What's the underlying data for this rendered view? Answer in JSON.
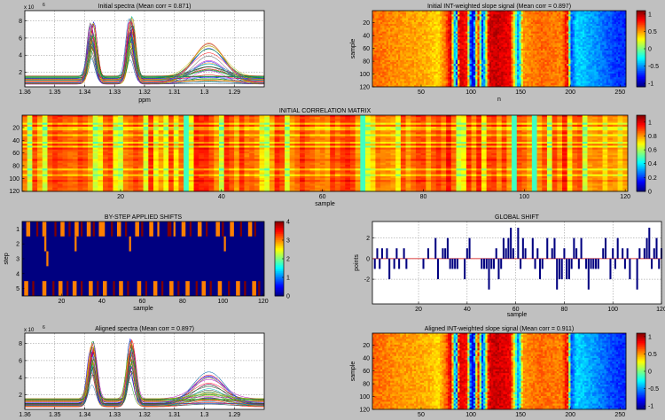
{
  "chart_data": [
    {
      "id": "initial-spectra",
      "type": "line",
      "title": "Initial spectra (Mean corr = 0.871)",
      "xlabel": "ppm",
      "ylabel": "",
      "exponent_label": "x 10",
      "exponent_power": "6",
      "xlim": [
        1.36,
        1.28
      ],
      "ylim": [
        0.3,
        9.2
      ],
      "xticks": [
        "1.36",
        "1.35",
        "1.34",
        "1.33",
        "1.32",
        "1.31",
        "1.3",
        "1.29"
      ],
      "xtick_values": [
        1.36,
        1.35,
        1.34,
        1.33,
        1.32,
        1.31,
        1.3,
        1.29
      ],
      "yticks": [
        "2",
        "4",
        "6",
        "8"
      ],
      "ytick_values": [
        2,
        4,
        6,
        8
      ],
      "peaks": [
        {
          "ppm": 1.3375,
          "max": 8.2
        },
        {
          "ppm": 1.3245,
          "max": 8.6
        },
        {
          "ppm": 1.2985,
          "max": 5.5
        }
      ],
      "baseline_range": [
        0.6,
        1.6
      ],
      "grid": true
    },
    {
      "id": "initial-slope",
      "type": "heatmap",
      "title": "Initial INT-weighted slope signal (Mean corr = 0.897)",
      "xlabel": "n",
      "ylabel": "sample",
      "xlim": [
        1,
        256
      ],
      "ylim": [
        1,
        120
      ],
      "xticks": [
        "50",
        "100",
        "150",
        "200",
        "250"
      ],
      "xtick_values": [
        50,
        100,
        150,
        200,
        250
      ],
      "yticks": [
        "20",
        "40",
        "60",
        "80",
        "100",
        "120"
      ],
      "ytick_values": [
        20,
        40,
        60,
        80,
        100,
        120
      ],
      "colorbar_ticks": [
        "1",
        "0.5",
        "0",
        "-0.5",
        "-1"
      ],
      "colorbar_values": [
        1,
        0.5,
        0,
        -0.5,
        -1
      ],
      "clim": [
        -1.1,
        1.1
      ],
      "profile": [
        {
          "n": 1,
          "v": 0.6
        },
        {
          "n": 30,
          "v": 0.5
        },
        {
          "n": 55,
          "v": 0.45
        },
        {
          "n": 68,
          "v": 0.35
        },
        {
          "n": 75,
          "v": 0.6
        },
        {
          "n": 80,
          "v": 0.95
        },
        {
          "n": 85,
          "v": -0.8
        },
        {
          "n": 88,
          "v": 0.9
        },
        {
          "n": 96,
          "v": 0.8
        },
        {
          "n": 100,
          "v": -0.8
        },
        {
          "n": 103,
          "v": -0.9
        },
        {
          "n": 107,
          "v": 0.9
        },
        {
          "n": 112,
          "v": -0.8
        },
        {
          "n": 118,
          "v": 0.9
        },
        {
          "n": 125,
          "v": 0.95
        },
        {
          "n": 140,
          "v": 0.85
        },
        {
          "n": 148,
          "v": -0.6
        },
        {
          "n": 152,
          "v": 0.5
        },
        {
          "n": 170,
          "v": 0.6
        },
        {
          "n": 192,
          "v": 0.55
        },
        {
          "n": 197,
          "v": 0.9
        },
        {
          "n": 201,
          "v": -0.7
        },
        {
          "n": 206,
          "v": -0.35
        },
        {
          "n": 225,
          "v": -0.5
        },
        {
          "n": 245,
          "v": -0.7
        },
        {
          "n": 256,
          "v": -0.75
        }
      ]
    },
    {
      "id": "initial-corr",
      "type": "heatmap",
      "title": "INITIAL CORRELATION MATRIX",
      "xlabel": "sample",
      "ylabel": "",
      "xlim": [
        1,
        120
      ],
      "ylim": [
        1,
        120
      ],
      "xticks": [
        "20",
        "40",
        "60",
        "80",
        "100",
        "120"
      ],
      "xtick_values": [
        20,
        40,
        60,
        80,
        100,
        120
      ],
      "yticks": [
        "20",
        "40",
        "60",
        "80",
        "100",
        "120"
      ],
      "ytick_values": [
        20,
        40,
        60,
        80,
        100,
        120
      ],
      "colorbar_ticks": [
        "1",
        "0.8",
        "0.6",
        "0.4",
        "0.2",
        "0"
      ],
      "colorbar_values": [
        1,
        0.8,
        0.6,
        0.4,
        0.2,
        0
      ],
      "clim": [
        0,
        1.1
      ],
      "low_corr_samples": [
        33,
        68,
        98,
        102
      ]
    },
    {
      "id": "step-shifts",
      "type": "heatmap",
      "title": "BY-STEP APPLIED SHIFTS",
      "xlabel": "sample",
      "ylabel": "step",
      "xlim": [
        1,
        120
      ],
      "ylim": [
        1,
        5
      ],
      "xticks": [
        "20",
        "40",
        "60",
        "80",
        "100",
        "120"
      ],
      "xtick_values": [
        20,
        40,
        60,
        80,
        100,
        120
      ],
      "yticks": [
        "1",
        "2",
        "3",
        "4",
        "5"
      ],
      "ytick_values": [
        1,
        2,
        3,
        4,
        5
      ],
      "colorbar_ticks": [
        "4",
        "3",
        "2",
        "1",
        "0"
      ],
      "colorbar_values": [
        4,
        3,
        2,
        1,
        0
      ],
      "clim": [
        0,
        4
      ],
      "rows": [
        {
          "step": 1,
          "cells": [
            [
              3,
              2,
              3
            ],
            [
              8,
              1,
              4
            ],
            [
              11,
              2,
              3
            ],
            [
              17,
              1,
              4
            ],
            [
              20,
              2,
              3
            ],
            [
              24,
              1,
              4
            ],
            [
              27,
              2,
              3
            ],
            [
              30,
              1,
              4
            ],
            [
              33,
              2,
              3
            ],
            [
              36,
              1,
              4
            ],
            [
              39,
              3,
              3
            ],
            [
              45,
              1,
              4
            ],
            [
              48,
              2,
              3
            ],
            [
              52,
              1,
              4
            ],
            [
              57,
              2,
              3
            ],
            [
              60,
              1,
              4
            ],
            [
              64,
              2,
              3
            ],
            [
              68,
              1,
              3
            ],
            [
              73,
              2,
              4
            ],
            [
              76,
              1,
              3
            ],
            [
              80,
              2,
              3
            ],
            [
              84,
              1,
              4
            ],
            [
              88,
              2,
              3
            ],
            [
              92,
              1,
              4
            ],
            [
              97,
              2,
              3
            ],
            [
              100,
              1,
              4
            ],
            [
              104,
              2,
              3
            ],
            [
              109,
              1,
              4
            ],
            [
              113,
              2,
              3
            ],
            [
              116,
              1,
              4
            ]
          ]
        },
        {
          "step": 2,
          "cells": [
            [
              12,
              1,
              3
            ],
            [
              27,
              1,
              3
            ],
            [
              54,
              1,
              3
            ],
            [
              101,
              1,
              3
            ]
          ]
        },
        {
          "step": 3,
          "cells": [
            [
              13,
              1,
              3
            ]
          ]
        },
        {
          "step": 4,
          "cells": []
        },
        {
          "step": 5,
          "cells": [
            [
              2,
              2,
              3
            ],
            [
              6,
              1,
              4
            ],
            [
              11,
              2,
              3
            ],
            [
              16,
              1,
              4
            ],
            [
              19,
              2,
              3
            ],
            [
              23,
              1,
              4
            ],
            [
              26,
              2,
              3
            ],
            [
              30,
              1,
              4
            ],
            [
              34,
              2,
              3
            ],
            [
              38,
              1,
              4
            ],
            [
              41,
              2,
              3
            ],
            [
              46,
              1,
              4
            ],
            [
              49,
              2,
              3
            ],
            [
              53,
              1,
              4
            ],
            [
              58,
              2,
              3
            ],
            [
              62,
              1,
              4
            ],
            [
              66,
              2,
              3
            ],
            [
              70,
              1,
              4
            ],
            [
              74,
              2,
              3
            ],
            [
              78,
              1,
              4
            ],
            [
              82,
              2,
              3
            ],
            [
              87,
              1,
              4
            ],
            [
              90,
              2,
              3
            ],
            [
              94,
              1,
              4
            ],
            [
              98,
              2,
              3
            ],
            [
              103,
              1,
              4
            ],
            [
              107,
              2,
              3
            ],
            [
              111,
              1,
              4
            ],
            [
              115,
              2,
              3
            ],
            [
              118,
              1,
              4
            ]
          ]
        }
      ]
    },
    {
      "id": "global-shift",
      "type": "bar",
      "title": "GLOBAL SHIFT",
      "xlabel": "sample",
      "ylabel": "points",
      "xlim": [
        1,
        120
      ],
      "ylim": [
        -4.4,
        3.6
      ],
      "xticks": [
        "20",
        "40",
        "60",
        "80",
        "100",
        "120"
      ],
      "xtick_values": [
        20,
        40,
        60,
        80,
        100,
        120
      ],
      "yticks": [
        "2",
        "0",
        "-2"
      ],
      "ytick_values": [
        2,
        0,
        -2
      ],
      "x": [
        1,
        2,
        3,
        4,
        5,
        6,
        7,
        8,
        9,
        10,
        11,
        12,
        13,
        14,
        15,
        16,
        17,
        18,
        19,
        20,
        21,
        22,
        23,
        24,
        25,
        26,
        27,
        28,
        29,
        30,
        31,
        32,
        33,
        34,
        35,
        36,
        37,
        38,
        39,
        40,
        41,
        42,
        43,
        44,
        45,
        46,
        47,
        48,
        49,
        50,
        51,
        52,
        53,
        54,
        55,
        56,
        57,
        58,
        59,
        60,
        61,
        62,
        63,
        64,
        65,
        66,
        67,
        68,
        69,
        70,
        71,
        72,
        73,
        74,
        75,
        76,
        77,
        78,
        79,
        80,
        81,
        82,
        83,
        84,
        85,
        86,
        87,
        88,
        89,
        90,
        91,
        92,
        93,
        94,
        95,
        96,
        97,
        98,
        99,
        100,
        101,
        102,
        103,
        104,
        105,
        106,
        107,
        108,
        109,
        110,
        111,
        112,
        113,
        114,
        115,
        116,
        117,
        118,
        119,
        120
      ],
      "values": [
        0,
        -1,
        1,
        -1,
        1,
        0,
        1,
        -2,
        0,
        -1,
        1,
        -1,
        0,
        1,
        -1,
        0,
        0,
        0,
        0,
        0,
        0,
        -1,
        0,
        1,
        0,
        0,
        2,
        -2,
        0,
        1,
        1,
        2,
        -1,
        -1,
        -1,
        -1,
        0,
        0,
        -2,
        1,
        2,
        0,
        0,
        0,
        0,
        -1,
        -1,
        -1,
        -3,
        -1,
        -1,
        1,
        -2,
        -1,
        2,
        1,
        2,
        3,
        1,
        0,
        3,
        -1,
        2,
        1,
        0,
        0,
        2,
        -1,
        1,
        -2,
        -1,
        0,
        2,
        0,
        1,
        2,
        -3,
        -2,
        -2,
        1,
        -2,
        -2,
        -1,
        2,
        1,
        -1,
        2,
        0,
        -1,
        -3,
        -1,
        -1,
        -1,
        -1,
        0,
        1,
        2,
        0,
        -2,
        1,
        -1,
        2,
        0,
        1,
        -1,
        1,
        -2,
        0,
        0,
        -3,
        1,
        0,
        1,
        2,
        3,
        -1,
        1,
        2,
        -1,
        1
      ]
    },
    {
      "id": "aligned-spectra",
      "type": "line",
      "title": "Aligned spectra (Mean corr = 0.897)",
      "xlabel": "",
      "ylabel": "",
      "exponent_label": "x 10",
      "exponent_power": "6",
      "xlim": [
        1.36,
        1.28
      ],
      "ylim": [
        0.3,
        9.2
      ],
      "xticks": [
        "1.36",
        "1.35",
        "1.34",
        "1.33",
        "1.32",
        "1.31",
        "1.3",
        "1.29"
      ],
      "xtick_values": [
        1.36,
        1.35,
        1.34,
        1.33,
        1.32,
        1.31,
        1.3,
        1.29
      ],
      "yticks": [
        "2",
        "4",
        "6",
        "8"
      ],
      "ytick_values": [
        2,
        4,
        6,
        8
      ],
      "peaks": [
        {
          "ppm": 1.3375,
          "max": 8.5
        },
        {
          "ppm": 1.3245,
          "max": 8.7
        },
        {
          "ppm": 1.2985,
          "max": 5.5
        }
      ],
      "baseline_range": [
        0.6,
        1.6
      ],
      "grid": true
    },
    {
      "id": "aligned-slope",
      "type": "heatmap",
      "title": "Aligned INT-weighted slope signal (Mean corr = 0.911)",
      "xlabel": "n",
      "ylabel": "sample",
      "xlim": [
        1,
        256
      ],
      "ylim": [
        1,
        120
      ],
      "xticks": [
        "50",
        "100",
        "150",
        "200",
        "250"
      ],
      "xtick_values": [
        50,
        100,
        150,
        200,
        250
      ],
      "yticks": [
        "20",
        "40",
        "60",
        "80",
        "100",
        "120"
      ],
      "ytick_values": [
        20,
        40,
        60,
        80,
        100,
        120
      ],
      "colorbar_ticks": [
        "1",
        "0.5",
        "0",
        "-0.5",
        "-1"
      ],
      "colorbar_values": [
        1,
        0.5,
        0,
        -0.5,
        -1
      ],
      "clim": [
        -1.1,
        1.1
      ],
      "profile": [
        {
          "n": 1,
          "v": 0.6
        },
        {
          "n": 30,
          "v": 0.5
        },
        {
          "n": 55,
          "v": 0.45
        },
        {
          "n": 68,
          "v": 0.35
        },
        {
          "n": 75,
          "v": 0.6
        },
        {
          "n": 80,
          "v": 0.95
        },
        {
          "n": 85,
          "v": -0.8
        },
        {
          "n": 88,
          "v": 0.9
        },
        {
          "n": 96,
          "v": 0.8
        },
        {
          "n": 100,
          "v": -0.8
        },
        {
          "n": 103,
          "v": -0.9
        },
        {
          "n": 107,
          "v": 0.9
        },
        {
          "n": 112,
          "v": -0.8
        },
        {
          "n": 118,
          "v": 0.9
        },
        {
          "n": 125,
          "v": 0.95
        },
        {
          "n": 140,
          "v": 0.85
        },
        {
          "n": 148,
          "v": -0.6
        },
        {
          "n": 152,
          "v": 0.5
        },
        {
          "n": 170,
          "v": 0.6
        },
        {
          "n": 192,
          "v": 0.55
        },
        {
          "n": 197,
          "v": 0.9
        },
        {
          "n": 201,
          "v": -0.7
        },
        {
          "n": 206,
          "v": -0.35
        },
        {
          "n": 225,
          "v": -0.5
        },
        {
          "n": 245,
          "v": -0.7
        },
        {
          "n": 256,
          "v": -0.75
        }
      ]
    }
  ]
}
